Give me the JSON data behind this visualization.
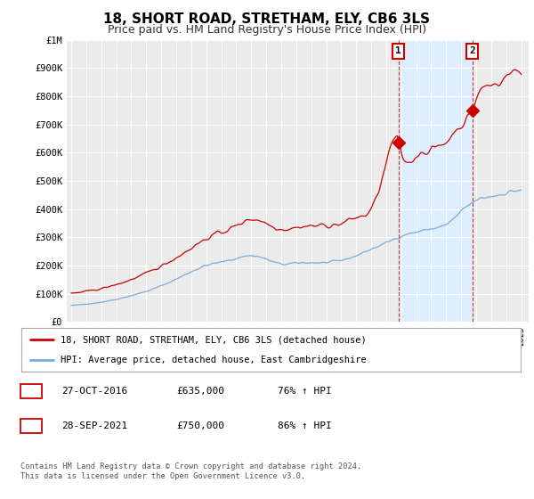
{
  "title": "18, SHORT ROAD, STRETHAM, ELY, CB6 3LS",
  "subtitle": "Price paid vs. HM Land Registry's House Price Index (HPI)",
  "title_fontsize": 11,
  "subtitle_fontsize": 9,
  "background_color": "#ffffff",
  "plot_bg_color": "#ebebeb",
  "ylim": [
    0,
    1000000
  ],
  "yticks": [
    0,
    100000,
    200000,
    300000,
    400000,
    500000,
    600000,
    700000,
    800000,
    900000,
    1000000
  ],
  "ytick_labels": [
    "£0",
    "£100K",
    "£200K",
    "£300K",
    "£400K",
    "£500K",
    "£600K",
    "£700K",
    "£800K",
    "£900K",
    "£1M"
  ],
  "xlim_start": 1994.7,
  "xlim_end": 2025.5,
  "sale1_year": 2016.82,
  "sale1_price": 635000,
  "sale1_label": "1",
  "sale1_date": "27-OCT-2016",
  "sale1_amount": "£635,000",
  "sale1_hpi": "76% ↑ HPI",
  "sale2_year": 2021.74,
  "sale2_price": 750000,
  "sale2_label": "2",
  "sale2_date": "28-SEP-2021",
  "sale2_amount": "£750,000",
  "sale2_hpi": "86% ↑ HPI",
  "red_line_color": "#cc0000",
  "blue_line_color": "#7aabdb",
  "shade_color": "#ddeeff",
  "legend_label_red": "18, SHORT ROAD, STRETHAM, ELY, CB6 3LS (detached house)",
  "legend_label_blue": "HPI: Average price, detached house, East Cambridgeshire",
  "footer_line1": "Contains HM Land Registry data © Crown copyright and database right 2024.",
  "footer_line2": "This data is licensed under the Open Government Licence v3.0."
}
